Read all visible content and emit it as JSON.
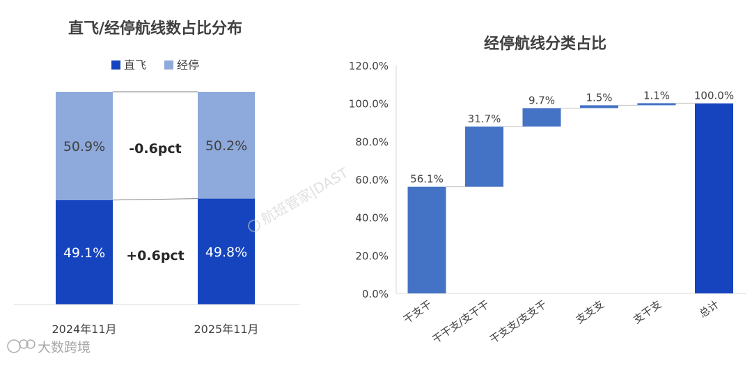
{
  "chart_data": [
    {
      "type": "bar",
      "stacked": true,
      "title": "直飞/经停航线数占比分布",
      "categories": [
        "2024年11月",
        "2025年11月"
      ],
      "series": [
        {
          "name": "直飞",
          "values": [
            49.1,
            49.8
          ],
          "labels": [
            "49.1%",
            "49.8%"
          ],
          "color": "#1544BE"
        },
        {
          "name": "经停",
          "values": [
            50.9,
            50.2
          ],
          "labels": [
            "50.9%",
            "50.2%"
          ],
          "color": "#8EA9DB"
        }
      ],
      "changes": [
        {
          "series": "经停",
          "text": "-0.6pct"
        },
        {
          "series": "直飞",
          "text": "+0.6pct"
        }
      ],
      "legend": "top-center",
      "ylim": [
        0,
        100
      ],
      "grid": false
    },
    {
      "type": "bar",
      "subtype": "waterfall",
      "title": "经停航线分类占比",
      "categories": [
        "干支干",
        "干干支/支干干",
        "干支支/支支干",
        "支支支",
        "支干支",
        "总计"
      ],
      "values": [
        56.1,
        31.7,
        9.7,
        1.5,
        1.1,
        100.0
      ],
      "labels": [
        "56.1%",
        "31.7%",
        "9.7%",
        "1.5%",
        "1.1%",
        "100.0%"
      ],
      "total_index": 5,
      "yticks": [
        "0.0%",
        "20.0%",
        "40.0%",
        "60.0%",
        "80.0%",
        "100.0%",
        "120.0%"
      ],
      "ylim": [
        0,
        120
      ],
      "grid": false,
      "colors": {
        "step": "#4472C4",
        "total": "#1544BE"
      }
    }
  ],
  "watermarks": {
    "center": "航班管家|DAST",
    "corner": "大数跨境"
  }
}
